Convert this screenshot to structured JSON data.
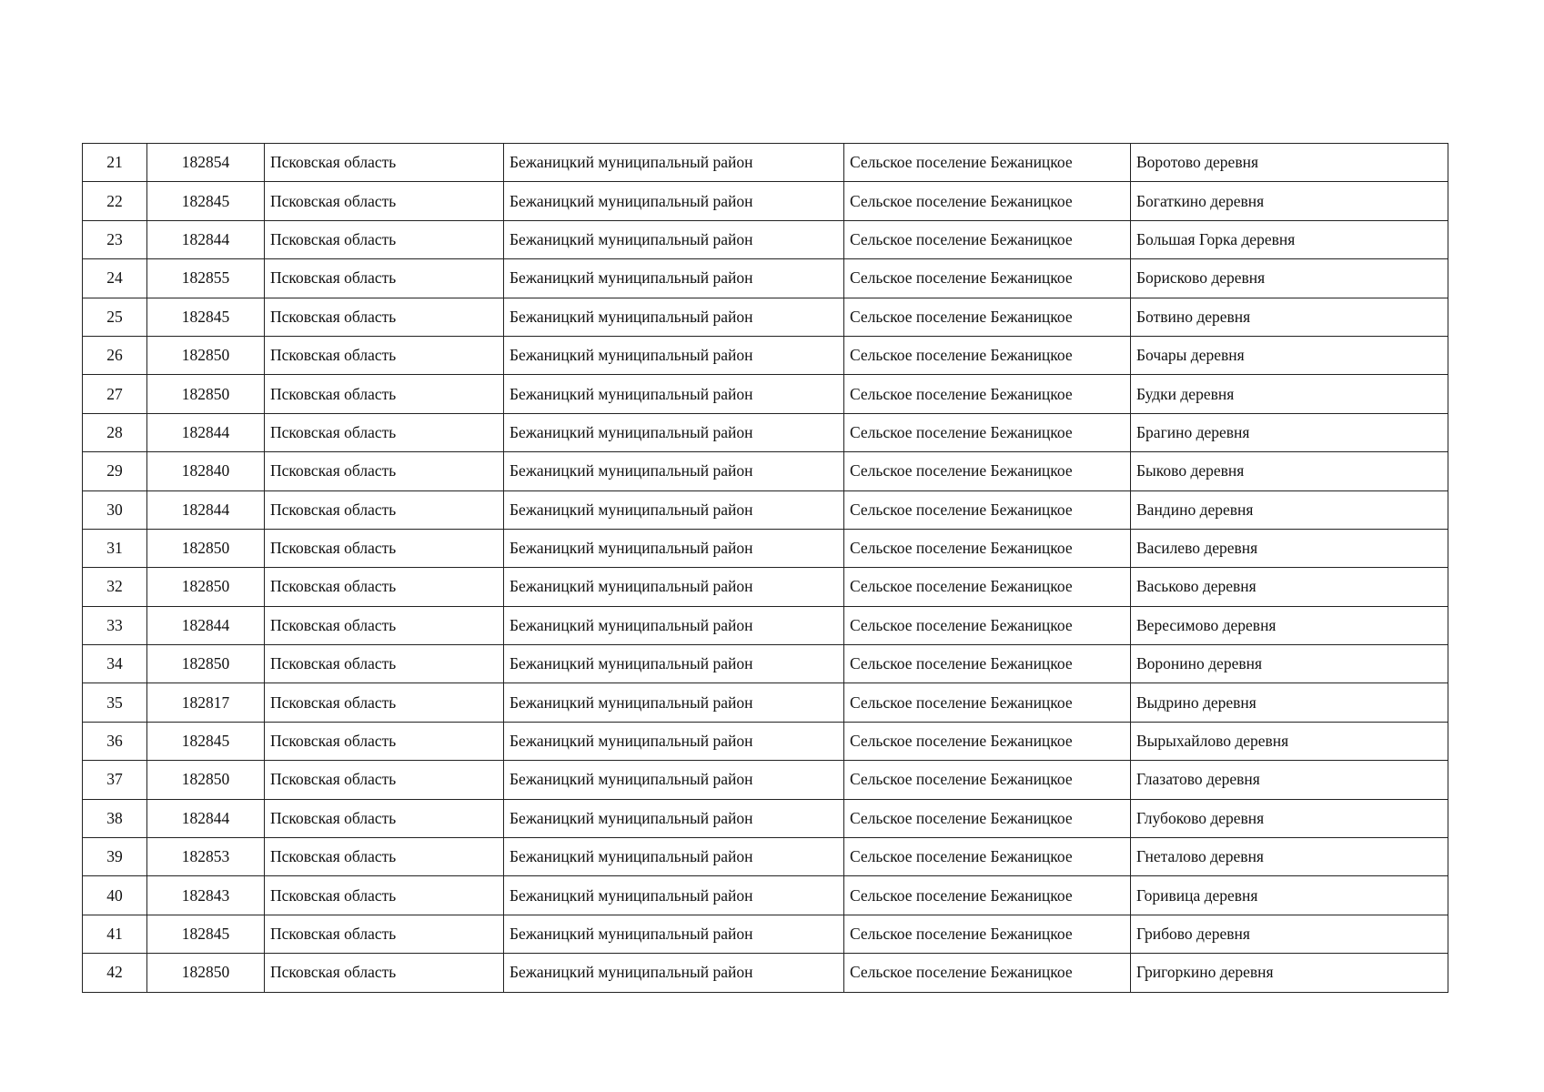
{
  "rows": [
    [
      "21",
      "182854",
      "Псковская область",
      "Бежаницкий муниципальный район",
      "Сельское поселение Бежаницкое",
      "Воротово деревня"
    ],
    [
      "22",
      "182845",
      "Псковская область",
      "Бежаницкий муниципальный район",
      "Сельское поселение Бежаницкое",
      "Богаткино деревня"
    ],
    [
      "23",
      "182844",
      "Псковская область",
      "Бежаницкий муниципальный район",
      "Сельское поселение Бежаницкое",
      "Большая Горка деревня"
    ],
    [
      "24",
      "182855",
      "Псковская область",
      "Бежаницкий муниципальный район",
      "Сельское поселение Бежаницкое",
      "Борисково деревня"
    ],
    [
      "25",
      "182845",
      "Псковская область",
      "Бежаницкий муниципальный район",
      "Сельское поселение Бежаницкое",
      "Ботвино деревня"
    ],
    [
      "26",
      "182850",
      "Псковская область",
      "Бежаницкий муниципальный район",
      "Сельское поселение Бежаницкое",
      "Бочары деревня"
    ],
    [
      "27",
      "182850",
      "Псковская область",
      "Бежаницкий муниципальный район",
      "Сельское поселение Бежаницкое",
      "Будки деревня"
    ],
    [
      "28",
      "182844",
      "Псковская область",
      "Бежаницкий муниципальный район",
      "Сельское поселение Бежаницкое",
      "Брагино деревня"
    ],
    [
      "29",
      "182840",
      "Псковская область",
      "Бежаницкий муниципальный район",
      "Сельское поселение Бежаницкое",
      "Быково деревня"
    ],
    [
      "30",
      "182844",
      "Псковская область",
      "Бежаницкий муниципальный район",
      "Сельское поселение Бежаницкое",
      "Вандино деревня"
    ],
    [
      "31",
      "182850",
      "Псковская область",
      "Бежаницкий муниципальный район",
      "Сельское поселение Бежаницкое",
      "Василево деревня"
    ],
    [
      "32",
      "182850",
      "Псковская область",
      "Бежаницкий муниципальный район",
      "Сельское поселение Бежаницкое",
      "Васьково деревня"
    ],
    [
      "33",
      "182844",
      "Псковская область",
      "Бежаницкий муниципальный район",
      "Сельское поселение Бежаницкое",
      "Вересимово деревня"
    ],
    [
      "34",
      "182850",
      "Псковская область",
      "Бежаницкий муниципальный район",
      "Сельское поселение Бежаницкое",
      "Воронино деревня"
    ],
    [
      "35",
      "182817",
      "Псковская область",
      "Бежаницкий муниципальный район",
      "Сельское поселение Бежаницкое",
      "Выдрино деревня"
    ],
    [
      "36",
      "182845",
      "Псковская область",
      "Бежаницкий муниципальный район",
      "Сельское поселение Бежаницкое",
      "Вырыхайлово деревня"
    ],
    [
      "37",
      "182850",
      "Псковская область",
      "Бежаницкий муниципальный район",
      "Сельское поселение Бежаницкое",
      "Глазатово деревня"
    ],
    [
      "38",
      "182844",
      "Псковская область",
      "Бежаницкий муниципальный район",
      "Сельское поселение Бежаницкое",
      "Глубоково деревня"
    ],
    [
      "39",
      "182853",
      "Псковская область",
      "Бежаницкий муниципальный район",
      "Сельское поселение Бежаницкое",
      "Гнеталово деревня"
    ],
    [
      "40",
      "182843",
      "Псковская область",
      "Бежаницкий муниципальный район",
      "Сельское поселение Бежаницкое",
      "Горивица деревня"
    ],
    [
      "41",
      "182845",
      "Псковская область",
      "Бежаницкий муниципальный район",
      "Сельское поселение Бежаницкое",
      "Грибово деревня"
    ],
    [
      "42",
      "182850",
      "Псковская область",
      "Бежаницкий муниципальный район",
      "Сельское поселение Бежаницкое",
      "Григоркино деревня"
    ]
  ]
}
